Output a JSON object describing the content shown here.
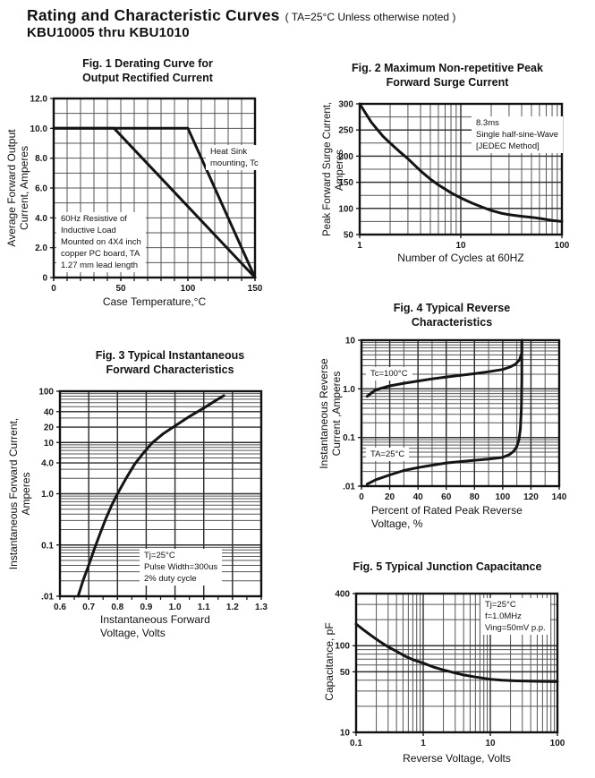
{
  "page": {
    "title": "Rating and Characteristic Curves",
    "title_note": "( TA=25°C Unless otherwise noted )",
    "subtitle": "KBU10005 thru KBU1010"
  },
  "chart_data": [
    {
      "id": "fig1",
      "type": "line",
      "title_lines": [
        "Fig. 1 Derating Curve for",
        "Output Rectified Current"
      ],
      "x_axis": {
        "label_lines": [
          "Case Temperature,°C"
        ],
        "scale": "linear",
        "min": 0,
        "max": 150,
        "minor_step": 10,
        "ticks": [
          {
            "v": 0,
            "label": "0"
          },
          {
            "v": 50,
            "label": "50"
          },
          {
            "v": 100,
            "label": "100"
          },
          {
            "v": 150,
            "label": "150"
          }
        ]
      },
      "y_axis": {
        "label_lines": [
          "Average Forward Output",
          "Current, Amperes"
        ],
        "scale": "linear",
        "min": 0,
        "max": 12,
        "minor_step": 1,
        "ticks": [
          {
            "v": 12,
            "label": "12.0"
          },
          {
            "v": 10,
            "label": "10.0"
          },
          {
            "v": 8,
            "label": "8.0"
          },
          {
            "v": 6,
            "label": "6.0"
          },
          {
            "v": 4,
            "label": "4.0"
          },
          {
            "v": 2,
            "label": "2.0"
          },
          {
            "v": 0,
            "label": "0"
          }
        ]
      },
      "series": [
        {
          "name": "copper PC board, TA",
          "points": [
            [
              0,
              10
            ],
            [
              45,
              10
            ],
            [
              150,
              0
            ]
          ]
        },
        {
          "name": "Heat Sink mounting, Tc",
          "points": [
            [
              0,
              10
            ],
            [
              100,
              10
            ],
            [
              150,
              0
            ]
          ]
        }
      ],
      "annotations": [
        {
          "lines": [
            "Heat Sink",
            "mounting, Tc"
          ]
        },
        {
          "lines": [
            "60Hz Resistive of",
            "Inductive Load",
            "Mounted on 4X4 inch",
            "copper PC board, TA",
            "1.27 mm lead length"
          ]
        }
      ]
    },
    {
      "id": "fig2",
      "type": "line",
      "title_lines": [
        "Fig. 2 Maximum Non-repetitive Peak",
        "Forward Surge Current"
      ],
      "x_axis": {
        "label_lines": [
          "Number of Cycles at 60HZ"
        ],
        "scale": "log",
        "min": 1,
        "max": 100,
        "ticks": [
          {
            "v": 1,
            "label": "1"
          },
          {
            "v": 10,
            "label": "10"
          },
          {
            "v": 100,
            "label": "100"
          }
        ]
      },
      "y_axis": {
        "label_lines": [
          "Peak Forward Surge Current,",
          "Amperes"
        ],
        "scale": "linear",
        "min": 50,
        "max": 300,
        "minor_step": 25,
        "ticks": [
          {
            "v": 300,
            "label": "300"
          },
          {
            "v": 250,
            "label": "250"
          },
          {
            "v": 200,
            "label": "200"
          },
          {
            "v": 150,
            "label": "150"
          },
          {
            "v": 100,
            "label": "100"
          },
          {
            "v": 50,
            "label": "50"
          }
        ]
      },
      "series": [
        {
          "name": "peak forward surge current",
          "points": [
            [
              1,
              300
            ],
            [
              1.3,
              265
            ],
            [
              1.7,
              238
            ],
            [
              2,
              225
            ],
            [
              2.5,
              208
            ],
            [
              3,
              195
            ],
            [
              4,
              172
            ],
            [
              5,
              156
            ],
            [
              6,
              145
            ],
            [
              7,
              137
            ],
            [
              8,
              130
            ],
            [
              10,
              120
            ],
            [
              13,
              110
            ],
            [
              16,
              103
            ],
            [
              20,
              96
            ],
            [
              25,
              91
            ],
            [
              30,
              88
            ],
            [
              40,
              85
            ],
            [
              50,
              83
            ],
            [
              65,
              80
            ],
            [
              80,
              77
            ],
            [
              100,
              75
            ]
          ]
        }
      ],
      "annotations": [
        {
          "lines": [
            "8.3ms",
            "Single half-sine-Wave",
            "[JEDEC Method]"
          ]
        }
      ]
    },
    {
      "id": "fig3",
      "type": "line",
      "title_lines": [
        "Fig. 3 Typical Instantaneous",
        "Forward Characteristics"
      ],
      "x_axis": {
        "label_lines": [
          "Instantaneous Forward",
          "Voltage, Volts"
        ],
        "scale": "linear",
        "min": 0.6,
        "max": 1.3,
        "minor_step": 0.1,
        "ticks": [
          {
            "v": 0.6,
            "label": "0.6"
          },
          {
            "v": 0.7,
            "label": "0.7"
          },
          {
            "v": 0.8,
            "label": "0.8"
          },
          {
            "v": 0.9,
            "label": "0.9"
          },
          {
            "v": 1.0,
            "label": "1.0"
          },
          {
            "v": 1.1,
            "label": "1.1"
          },
          {
            "v": 1.2,
            "label": "1.2"
          },
          {
            "v": 1.3,
            "label": "1.3"
          }
        ]
      },
      "y_axis": {
        "label_lines": [
          "Instantaneous Forward Current,",
          "Amperes"
        ],
        "scale": "log",
        "min": 0.01,
        "max": 100,
        "ticks": [
          {
            "v": 100,
            "label": "100"
          },
          {
            "v": 40,
            "label": "40"
          },
          {
            "v": 20,
            "label": "20"
          },
          {
            "v": 10,
            "label": "10"
          },
          {
            "v": 4,
            "label": "4.0"
          },
          {
            "v": 1,
            "label": "1.0"
          },
          {
            "v": 0.1,
            "label": "0.1"
          },
          {
            "v": 0.01,
            "label": ".01"
          }
        ]
      },
      "series": [
        {
          "name": "forward characteristic",
          "points": [
            [
              0.663,
              0.01
            ],
            [
              0.68,
              0.02
            ],
            [
              0.7,
              0.04
            ],
            [
              0.72,
              0.085
            ],
            [
              0.74,
              0.17
            ],
            [
              0.76,
              0.33
            ],
            [
              0.78,
              0.6
            ],
            [
              0.8,
              1.0
            ],
            [
              0.83,
              2.0
            ],
            [
              0.86,
              3.8
            ],
            [
              0.89,
              6.2
            ],
            [
              0.92,
              9.8
            ],
            [
              0.96,
              15
            ],
            [
              1.0,
              21
            ],
            [
              1.05,
              32
            ],
            [
              1.1,
              47
            ],
            [
              1.14,
              65
            ],
            [
              1.17,
              82
            ]
          ]
        }
      ],
      "annotations": [
        {
          "lines": [
            "Tj=25°C",
            "Pulse Width=300us",
            "2% duty cycle"
          ]
        }
      ]
    },
    {
      "id": "fig4",
      "type": "line",
      "title_lines": [
        "Fig. 4 Typical Reverse",
        "Characteristics"
      ],
      "x_axis": {
        "label_lines": [
          "Percent of Rated Peak Reverse",
          "Voltage, %"
        ],
        "scale": "linear",
        "min": 0,
        "max": 140,
        "minor_step": 10,
        "ticks": [
          {
            "v": 0,
            "label": "0"
          },
          {
            "v": 20,
            "label": "20"
          },
          {
            "v": 40,
            "label": "40"
          },
          {
            "v": 60,
            "label": "60"
          },
          {
            "v": 80,
            "label": "80"
          },
          {
            "v": 100,
            "label": "100"
          },
          {
            "v": 120,
            "label": "120"
          },
          {
            "v": 140,
            "label": "140"
          }
        ]
      },
      "y_axis": {
        "label_lines": [
          "Instantaneous Reverse",
          "Current ,Amperes"
        ],
        "scale": "log",
        "min": 0.01,
        "max": 10,
        "ticks": [
          {
            "v": 10,
            "label": "10"
          },
          {
            "v": 1,
            "label": "1.0"
          },
          {
            "v": 0.1,
            "label": "0.1"
          },
          {
            "v": 0.01,
            "label": ".01"
          }
        ]
      },
      "series": [
        {
          "name": "Tc=100°C",
          "points": [
            [
              4,
              0.7
            ],
            [
              10,
              0.95
            ],
            [
              20,
              1.15
            ],
            [
              30,
              1.3
            ],
            [
              40,
              1.45
            ],
            [
              50,
              1.6
            ],
            [
              60,
              1.75
            ],
            [
              70,
              1.9
            ],
            [
              80,
              2.05
            ],
            [
              90,
              2.25
            ],
            [
              100,
              2.5
            ],
            [
              105,
              2.8
            ],
            [
              109,
              3.2
            ],
            [
              112,
              4.0
            ],
            [
              113.5,
              5.5
            ],
            [
              113.5,
              10
            ]
          ]
        },
        {
          "name": "TA=25°C",
          "points": [
            [
              4,
              0.011
            ],
            [
              10,
              0.0135
            ],
            [
              20,
              0.017
            ],
            [
              30,
              0.021
            ],
            [
              40,
              0.024
            ],
            [
              50,
              0.027
            ],
            [
              60,
              0.03
            ],
            [
              70,
              0.032
            ],
            [
              80,
              0.034
            ],
            [
              90,
              0.036
            ],
            [
              100,
              0.039
            ],
            [
              105,
              0.045
            ],
            [
              108,
              0.053
            ],
            [
              110,
              0.065
            ],
            [
              111.5,
              0.09
            ],
            [
              112.5,
              0.15
            ],
            [
              113.2,
              0.4
            ],
            [
              113.5,
              1.5
            ],
            [
              113.5,
              10
            ]
          ]
        }
      ],
      "annotations": [
        {
          "lines": [
            "Tc=100°C"
          ]
        },
        {
          "lines": [
            "TA=25°C"
          ]
        }
      ]
    },
    {
      "id": "fig5",
      "type": "line",
      "title_lines": [
        "Fig. 5 Typical Junction Capacitance"
      ],
      "x_axis": {
        "label_lines": [
          "Reverse Voltage, Volts"
        ],
        "scale": "log",
        "min": 0.1,
        "max": 100,
        "ticks": [
          {
            "v": 0.1,
            "label": "0.1"
          },
          {
            "v": 1,
            "label": "1"
          },
          {
            "v": 10,
            "label": "10"
          },
          {
            "v": 100,
            "label": "100"
          }
        ]
      },
      "y_axis": {
        "label_lines": [
          "Capacitance, pF"
        ],
        "scale": "log",
        "min": 10,
        "max": 400,
        "ticks": [
          {
            "v": 400,
            "label": "400"
          },
          {
            "v": 100,
            "label": "100"
          },
          {
            "v": 50,
            "label": "50"
          },
          {
            "v": 10,
            "label": "10"
          }
        ]
      },
      "series": [
        {
          "name": "junction capacitance",
          "points": [
            [
              0.1,
              178
            ],
            [
              0.13,
              152
            ],
            [
              0.17,
              130
            ],
            [
              0.22,
              113
            ],
            [
              0.3,
              97
            ],
            [
              0.4,
              86
            ],
            [
              0.55,
              75
            ],
            [
              0.7,
              69
            ],
            [
              1,
              63
            ],
            [
              1.4,
              57
            ],
            [
              2,
              52.5
            ],
            [
              3,
              48.5
            ],
            [
              4,
              46
            ],
            [
              6,
              43.5
            ],
            [
              10,
              41
            ],
            [
              15,
              40
            ],
            [
              25,
              39.3
            ],
            [
              50,
              38.8
            ],
            [
              100,
              38.5
            ]
          ]
        }
      ],
      "annotations": [
        {
          "lines": [
            "Tj=25°C",
            "f=1.0MHz",
            "Ving=50mV p.p."
          ]
        }
      ]
    }
  ]
}
